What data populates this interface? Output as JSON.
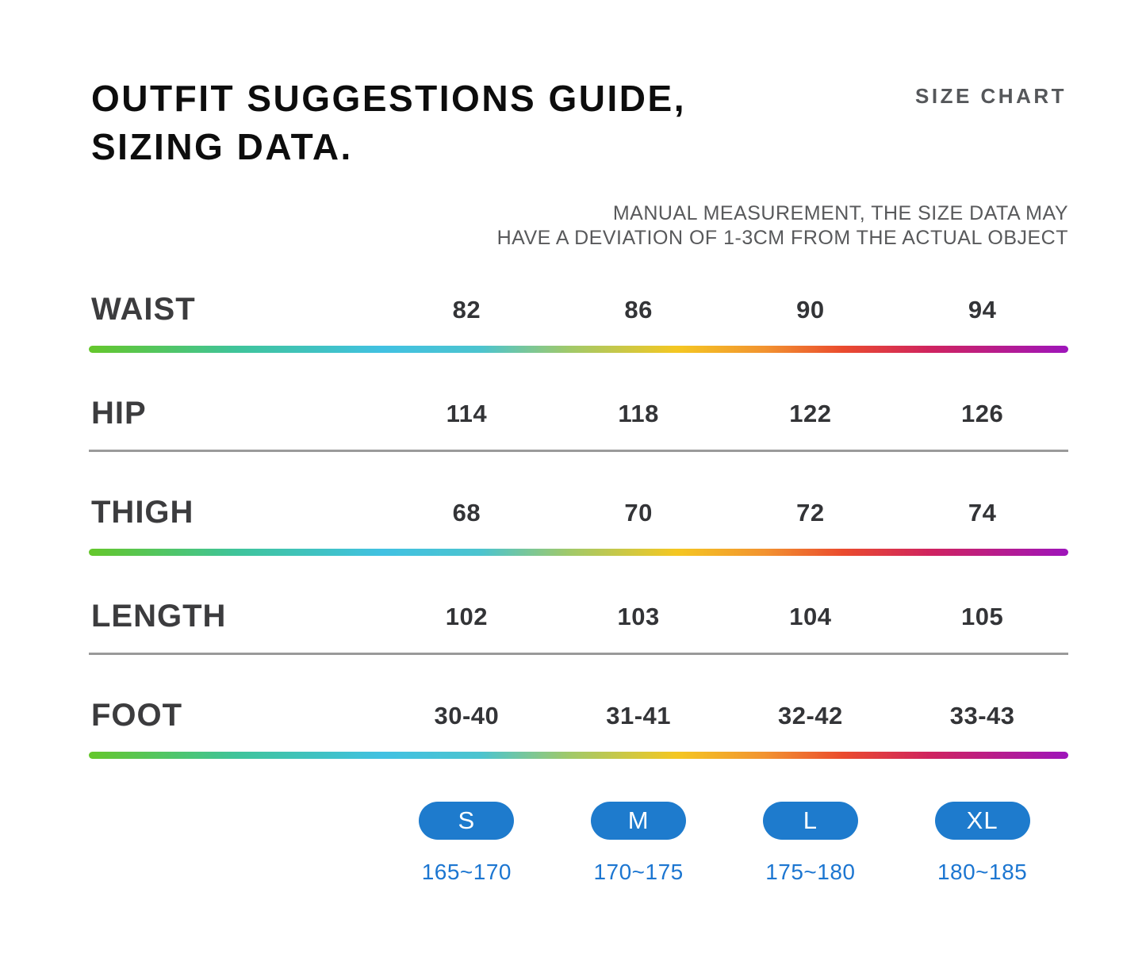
{
  "header": {
    "title_line1": "OUTFIT SUGGESTIONS GUIDE,",
    "title_line2": "SIZING DATA.",
    "corner_label": "SIZE CHART",
    "note_line1": "MANUAL MEASUREMENT, THE SIZE DATA MAY",
    "note_line2": "HAVE A DEVIATION OF 1-3CM FROM THE ACTUAL OBJECT"
  },
  "chart_data": {
    "type": "table",
    "title": "SIZE CHART",
    "columns": [
      "S",
      "M",
      "L",
      "XL"
    ],
    "rows": [
      {
        "label": "WAIST",
        "values": [
          "82",
          "86",
          "90",
          "94"
        ],
        "divider_style": "rainbow"
      },
      {
        "label": "HIP",
        "values": [
          "114",
          "118",
          "122",
          "126"
        ],
        "divider_style": "gray"
      },
      {
        "label": "THIGH",
        "values": [
          "68",
          "70",
          "72",
          "74"
        ],
        "divider_style": "rainbow"
      },
      {
        "label": "LENGTH",
        "values": [
          "102",
          "103",
          "104",
          "105"
        ],
        "divider_style": "gray"
      },
      {
        "label": "FOOT",
        "values": [
          "30-40",
          "31-41",
          "32-42",
          "33-43"
        ],
        "divider_style": "rainbow"
      }
    ],
    "size_badges": [
      {
        "size": "S",
        "height_range": "165~170"
      },
      {
        "size": "M",
        "height_range": "170~175"
      },
      {
        "size": "L",
        "height_range": "175~180"
      },
      {
        "size": "XL",
        "height_range": "180~185"
      }
    ]
  },
  "colors": {
    "badge_blue": "#1e7bcd",
    "height_text_blue": "#1c76d1",
    "gray_divider": "#9a9a9a",
    "rainbow_gradient": [
      "#65c72b",
      "#3fc49a",
      "#41c1e2",
      "#4cc4cf",
      "#a0c96a",
      "#f4c722",
      "#f29330",
      "#ea4b2e",
      "#cf2360",
      "#9e15bb"
    ]
  }
}
